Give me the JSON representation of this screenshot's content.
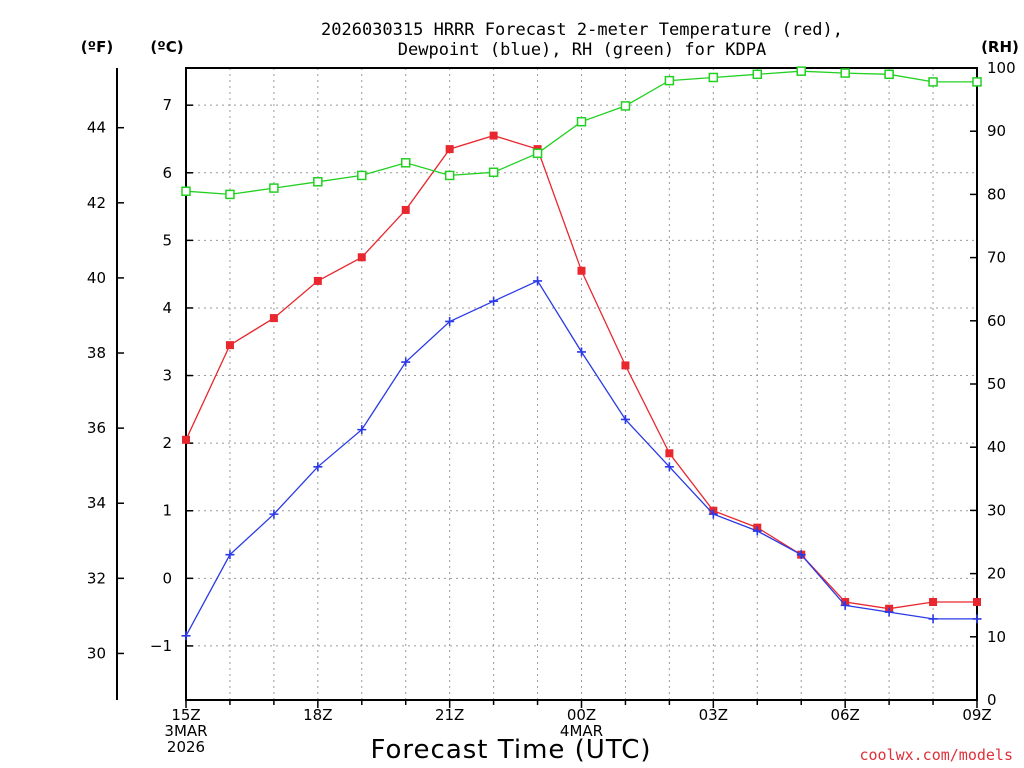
{
  "chart_data": {
    "type": "line",
    "title": "2026030315 HRRR Forecast 2-meter Temperature (red),",
    "subtitle": "Dewpoint (blue), RH (green) for KDPA",
    "xlabel": "Forecast Time (UTC)",
    "y_left_outer_unit": "(ºF)",
    "y_left_inner_unit": "(ºC)",
    "y_right_unit": "(RH)",
    "credit": "coolwx.com/models",
    "x_hours": [
      0,
      1,
      2,
      3,
      4,
      5,
      6,
      7,
      8,
      9,
      10,
      11,
      12,
      13,
      14,
      15,
      16,
      17,
      18
    ],
    "x_tick_labels": [
      {
        "hour": 0,
        "lines": [
          "15Z",
          "3MAR",
          "2026"
        ]
      },
      {
        "hour": 3,
        "lines": [
          "18Z"
        ]
      },
      {
        "hour": 6,
        "lines": [
          "21Z"
        ]
      },
      {
        "hour": 9,
        "lines": [
          "00Z",
          "4MAR"
        ]
      },
      {
        "hour": 12,
        "lines": [
          "03Z"
        ]
      },
      {
        "hour": 15,
        "lines": [
          "06Z"
        ]
      },
      {
        "hour": 18,
        "lines": [
          "09Z"
        ]
      }
    ],
    "celsius_range": [
      -1.8,
      7.55
    ],
    "celsius_ticks": [
      "-1",
      "0",
      "1",
      "2",
      "3",
      "4",
      "5",
      "6",
      "7"
    ],
    "fahrenheit_ticks": [
      "30",
      "32",
      "34",
      "36",
      "38",
      "40",
      "42",
      "44"
    ],
    "rh_range": [
      0,
      100
    ],
    "rh_ticks": [
      "0",
      "10",
      "20",
      "30",
      "40",
      "50",
      "60",
      "70",
      "80",
      "90",
      "100"
    ],
    "grid": true,
    "series": [
      {
        "name": "Temperature",
        "axis": "celsius",
        "color": "#e8282e",
        "marker": "filled-square",
        "values": [
          2.05,
          3.45,
          3.85,
          4.4,
          4.75,
          5.45,
          6.35,
          6.55,
          6.35,
          4.55,
          3.15,
          1.85,
          1.0,
          0.75,
          0.35,
          -0.35,
          -0.45,
          -0.35,
          -0.35
        ]
      },
      {
        "name": "Dewpoint",
        "axis": "celsius",
        "color": "#2a3ae6",
        "marker": "plus",
        "values": [
          -0.85,
          0.35,
          0.95,
          1.65,
          2.2,
          3.2,
          3.8,
          4.1,
          4.4,
          3.35,
          2.35,
          1.65,
          0.95,
          0.7,
          0.35,
          -0.4,
          -0.5,
          -0.6,
          -0.6
        ]
      },
      {
        "name": "RH",
        "axis": "rh",
        "color": "#22d022",
        "marker": "open-square",
        "values": [
          80.5,
          80.0,
          81.0,
          82.0,
          83.0,
          85.0,
          83.0,
          83.5,
          86.5,
          91.5,
          94.0,
          98.0,
          98.5,
          99.0,
          99.5,
          99.2,
          99.0,
          97.8,
          97.8
        ]
      }
    ]
  }
}
